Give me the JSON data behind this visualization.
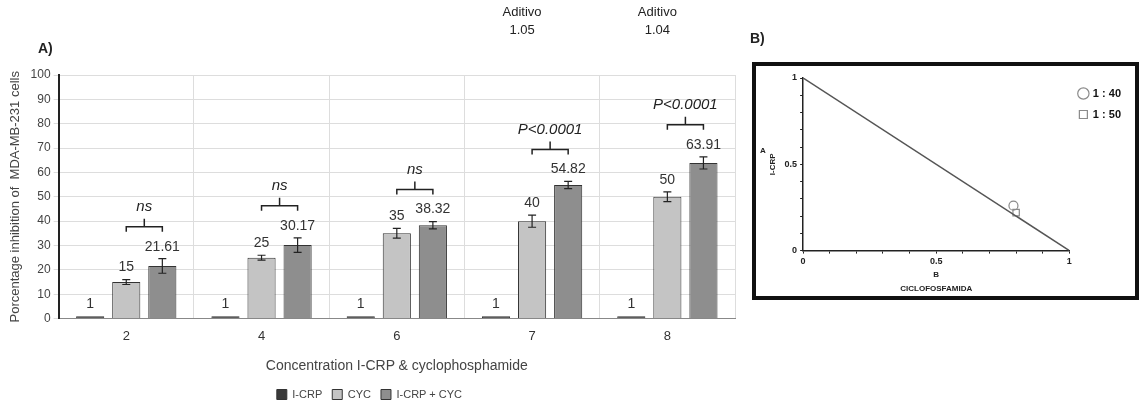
{
  "chart_data": [
    {
      "type": "bar",
      "xlabel": "Concentration I-CRP & cyclophosphamide",
      "ylabel": "Porcentage inhibition of  MDA-MB-231 cells",
      "categories": [
        "2",
        "4",
        "6",
        "7",
        "8"
      ],
      "series": [
        {
          "name": "I-CRP",
          "color": "#3a3a3a",
          "values": [
            1,
            1,
            1,
            1,
            1
          ]
        },
        {
          "name": "CYC",
          "color": "#c4c4c4",
          "values": [
            15,
            25,
            35,
            40,
            50
          ],
          "errors": [
            1,
            1,
            2,
            2.5,
            2
          ]
        },
        {
          "name": "I-CRP + CYC",
          "color": "#8e8e8e",
          "values": [
            21.61,
            30.17,
            38.32,
            54.82,
            63.91
          ],
          "errors": [
            3,
            3,
            1.5,
            1.5,
            2.5
          ]
        }
      ],
      "ylim": [
        0,
        100
      ],
      "yticks": [
        0,
        10,
        20,
        30,
        40,
        50,
        60,
        70,
        80,
        90,
        100
      ],
      "grid": true,
      "legend": "bottom",
      "data_labels": true,
      "annotations": [
        "A)",
        "ns",
        "ns",
        "ns",
        "P<0.0001",
        "P<0.0001",
        "Aditivo\n1.05",
        "Aditivo\n1.04"
      ]
    },
    {
      "type": "scatter",
      "xlabel": "CICLOFOSFAMIDA",
      "ylabel": "I-CRP",
      "series": [
        {
          "type": "line",
          "color": "#555555",
          "x": [
            0,
            1
          ],
          "values": [
            1,
            0
          ],
          "marker": "none"
        },
        {
          "name": "1 : 40",
          "color": "#8a8a8a",
          "x": [
            0.79
          ],
          "values": [
            0.26
          ],
          "marker": "circle"
        },
        {
          "name": "1 : 50",
          "color": "#8a8a8a",
          "x": [
            0.8
          ],
          "values": [
            0.22
          ],
          "marker": "square"
        }
      ],
      "xlim": [
        0,
        1
      ],
      "ylim": [
        0,
        1
      ],
      "xticks": [
        0,
        {
          "value": 0.1,
          "label": null
        },
        {
          "value": 0.2,
          "label": null
        },
        {
          "value": 0.3,
          "label": null
        },
        {
          "value": 0.4,
          "label": null
        },
        0.5,
        {
          "value": 0.6,
          "label": null
        },
        {
          "value": 0.7,
          "label": null
        },
        {
          "value": 0.8,
          "label": null
        },
        {
          "value": 0.9,
          "label": null
        },
        1
      ],
      "yticks": [
        0,
        {
          "value": 0.1,
          "label": null
        },
        {
          "value": 0.2,
          "label": null
        },
        {
          "value": 0.3,
          "label": null
        },
        {
          "value": 0.4,
          "label": null
        },
        0.5,
        {
          "value": 0.6,
          "label": null
        },
        {
          "value": 0.7,
          "label": null
        },
        {
          "value": 0.8,
          "label": null
        },
        {
          "value": 0.9,
          "label": null
        },
        1
      ],
      "legend": "top right",
      "annotations": [
        "B)",
        "A",
        "B"
      ]
    }
  ]
}
